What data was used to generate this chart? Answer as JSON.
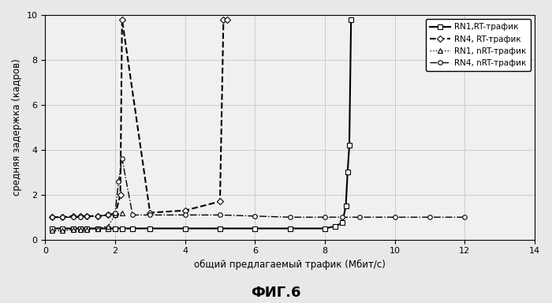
{
  "title": "ФИГ.6",
  "ylabel": "средняя задержка (кадров)",
  "xlabel": "общий предлагаемый трафик (Мбит/с)",
  "xlim": [
    0,
    14
  ],
  "ylim": [
    0,
    10
  ],
  "xticks": [
    0,
    2,
    4,
    6,
    8,
    10,
    12,
    14
  ],
  "yticks": [
    0,
    2,
    4,
    6,
    8,
    10
  ],
  "series": [
    {
      "label": "RN1,RT-трафик",
      "linestyle": "-",
      "marker": "s",
      "color": "#000000",
      "linewidth": 1.5,
      "markersize": 4,
      "x": [
        0.2,
        0.5,
        0.8,
        1.0,
        1.2,
        1.5,
        1.8,
        2.0,
        2.2,
        2.5,
        3.0,
        4.0,
        5.0,
        6.0,
        7.0,
        8.0,
        8.3,
        8.5,
        8.6,
        8.65,
        8.7,
        8.75
      ],
      "y": [
        0.5,
        0.5,
        0.5,
        0.5,
        0.5,
        0.5,
        0.5,
        0.5,
        0.5,
        0.5,
        0.5,
        0.5,
        0.5,
        0.5,
        0.5,
        0.5,
        0.6,
        0.75,
        1.5,
        3.0,
        4.2,
        9.8
      ]
    },
    {
      "label": "RN4, RT-трафик",
      "linestyle": "--",
      "marker": "D",
      "color": "#000000",
      "linewidth": 1.5,
      "markersize": 4,
      "x": [
        0.2,
        0.5,
        0.8,
        1.0,
        1.2,
        1.5,
        1.8,
        2.0,
        2.15,
        2.2,
        3.0,
        4.0,
        5.0,
        5.1,
        5.2
      ],
      "y": [
        1.0,
        1.0,
        1.05,
        1.05,
        1.05,
        1.05,
        1.1,
        1.1,
        2.0,
        9.8,
        1.2,
        1.3,
        1.7,
        9.8,
        9.8
      ]
    },
    {
      "label": "RN1, nRT-трафик",
      "linestyle": ":",
      "marker": "^",
      "color": "#000000",
      "linewidth": 1.0,
      "markersize": 4,
      "x": [
        0.2,
        0.5,
        0.8,
        1.0,
        1.2,
        1.5,
        1.8,
        2.0,
        2.2
      ],
      "y": [
        0.4,
        0.4,
        0.45,
        0.45,
        0.45,
        0.5,
        0.6,
        1.1,
        1.2
      ]
    },
    {
      "label": "RN4, nRT-трафик",
      "linestyle": "-.",
      "marker": "o",
      "color": "#000000",
      "linewidth": 1.0,
      "markersize": 4,
      "x": [
        0.2,
        0.5,
        0.8,
        1.0,
        1.2,
        1.5,
        1.8,
        2.0,
        2.1,
        2.2,
        2.5,
        3.0,
        4.0,
        5.0,
        6.0,
        7.0,
        8.0,
        8.5,
        9.0,
        10.0,
        11.0,
        12.0
      ],
      "y": [
        1.0,
        1.0,
        1.0,
        1.0,
        1.05,
        1.05,
        1.1,
        1.2,
        2.6,
        3.6,
        1.1,
        1.1,
        1.1,
        1.1,
        1.05,
        1.0,
        1.0,
        1.0,
        1.0,
        1.0,
        1.0,
        1.0
      ]
    }
  ],
  "background_color": "#f0f0f0",
  "grid_color": "#cccccc"
}
